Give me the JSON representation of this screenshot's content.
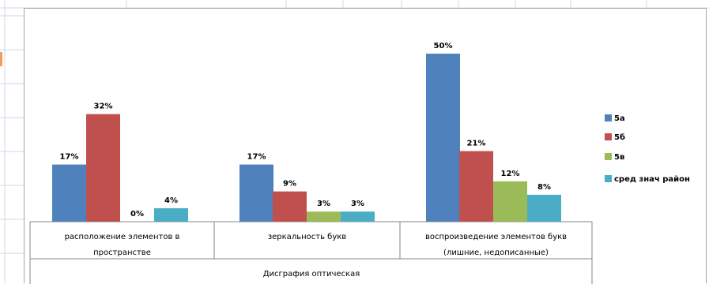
{
  "chart_data": {
    "type": "bar",
    "categories": [
      [
        "расположение элементов  в",
        "пространстве"
      ],
      [
        "зеркальность букв"
      ],
      [
        "воспроизведение элементов букв",
        "(лишние, недописанные)"
      ]
    ],
    "group_label": "Дисграфия оптическая",
    "series": [
      {
        "name": "5а",
        "color": "#4f81bd",
        "values": [
          17,
          17,
          50
        ],
        "labels": [
          "17%",
          "17%",
          "50%"
        ]
      },
      {
        "name": "5б",
        "color": "#c0504d",
        "values": [
          32,
          9,
          21
        ],
        "labels": [
          "32%",
          "9%",
          "21%"
        ]
      },
      {
        "name": "5в",
        "color": "#9bbb59",
        "values": [
          0,
          3,
          12
        ],
        "labels": [
          "0%",
          "3%",
          "12%"
        ]
      },
      {
        "name": "сред знач район",
        "color": "#4bacc6",
        "values": [
          4,
          3,
          8
        ],
        "labels": [
          "4%",
          "3%",
          "8%"
        ]
      }
    ],
    "ylim": [
      0,
      50
    ],
    "legend_position": "right",
    "grid": false
  }
}
